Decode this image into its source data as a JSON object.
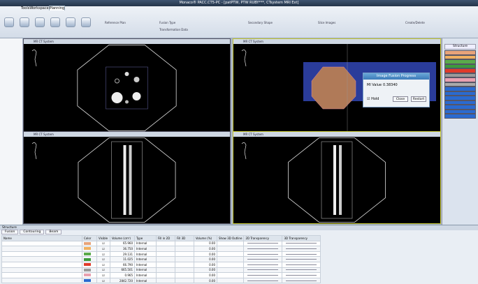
{
  "title_bar": "Monaco® PACC.CT5-PC - [patPTW, PTW RUBY***, CTsystem MRI Ext]",
  "ribbon": {
    "tabs": [
      "Tools",
      "Workspace",
      "Planning"
    ],
    "groups": [
      "Reference Plan",
      "Fusion Type",
      "Transformation Data",
      "Secondary Shape",
      "Slice Images",
      "Create/Delete"
    ]
  },
  "viewports": [
    "MR CT System",
    "MR CT System",
    "MR CT System",
    "MR CT System"
  ],
  "dialog": {
    "title": "Image Fusion Progress",
    "mi_label": "MI Value",
    "mi_value": "0.38340",
    "checkbox": "Hold",
    "buttons": [
      "Close",
      "Restart"
    ]
  },
  "structure_panel": {
    "header": "Structure",
    "colors": [
      "#e8a47a",
      "#f0b060",
      "#5aaa4a",
      "#3c9a3c",
      "#e03a2a",
      "#9a9a9a",
      "#e8a0b0",
      "#aaaaaa",
      "#2a6ad0",
      "#2a6ad0",
      "#2a6ad0",
      "#2a6ad0",
      "#2a6ad0",
      "#2a6ad0",
      "#2a6ad0"
    ]
  },
  "bottom_panel": {
    "title": "Structure",
    "tabs": [
      "Fusion",
      "Contouring",
      "Beam"
    ],
    "columns": [
      "Name",
      "Color",
      "Visible",
      "Volume (cm³)",
      "Type",
      "Fill in 2D",
      "Fill 3D",
      "Volume (%)",
      "Show 3D Outline",
      "2D Transparency",
      "3D Transparency"
    ],
    "rows": [
      {
        "color": "#e8a47a",
        "volume": "65.960",
        "type": "Internal",
        "percent": "0.00"
      },
      {
        "color": "#f0b060",
        "volume": "36.750",
        "type": "Internal",
        "percent": "0.00"
      },
      {
        "color": "#5aaa4a",
        "volume": "29.131",
        "type": "Internal",
        "percent": "0.00"
      },
      {
        "color": "#3c9a3c",
        "volume": "11.025",
        "type": "Internal",
        "percent": "0.00"
      },
      {
        "color": "#e03a2a",
        "volume": "66.790",
        "type": "Internal",
        "percent": "0.00"
      },
      {
        "color": "#9a9a9a",
        "volume": "665.501",
        "type": "Internal",
        "percent": "0.00"
      },
      {
        "color": "#e8a0b0",
        "volume": "0.965",
        "type": "Internal",
        "percent": "0.00"
      },
      {
        "color": "#2a6ad0",
        "volume": "2842.720",
        "type": "Internal",
        "percent": "0.00"
      }
    ]
  }
}
